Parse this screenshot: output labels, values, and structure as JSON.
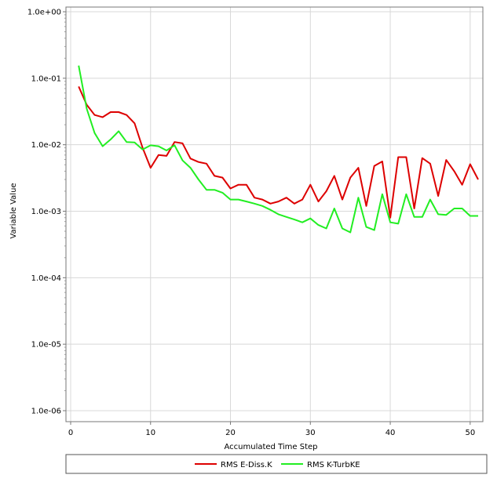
{
  "chart_data": {
    "type": "line",
    "title": "",
    "xlabel": "Accumulated Time Step",
    "ylabel": "Variable Value",
    "xlim": [
      0,
      51
    ],
    "ylim": [
      1e-06,
      1
    ],
    "y_scale": "log",
    "x_ticks": [
      0,
      10,
      20,
      30,
      40,
      50
    ],
    "x_tick_labels": [
      "0",
      "10",
      "20",
      "30",
      "40",
      "50"
    ],
    "y_ticks": [
      1e-06,
      1e-05,
      0.0001,
      0.001,
      0.01,
      0.1,
      1
    ],
    "y_tick_labels": [
      "1.0e-06",
      "1.0e-05",
      "1.0e-04",
      "1.0e-03",
      "1.0e-02",
      "1.0e-01",
      "1.0e+00"
    ],
    "grid": true,
    "legend_position": "bottom",
    "series": [
      {
        "name": "RMS E-Diss.K",
        "color": "#dd0000",
        "x": [
          1,
          2,
          3,
          4,
          5,
          6,
          7,
          8,
          9,
          10,
          11,
          12,
          13,
          14,
          15,
          16,
          17,
          18,
          19,
          20,
          21,
          22,
          23,
          24,
          25,
          26,
          27,
          28,
          29,
          30,
          31,
          32,
          33,
          34,
          35,
          36,
          37,
          38,
          39,
          40,
          41,
          42,
          43,
          44,
          45,
          46,
          47,
          48,
          49,
          50,
          51
        ],
        "values": [
          0.075,
          0.04,
          0.028,
          0.026,
          0.031,
          0.031,
          0.028,
          0.021,
          0.009,
          0.0045,
          0.007,
          0.0068,
          0.011,
          0.0105,
          0.0062,
          0.0055,
          0.0052,
          0.0034,
          0.0032,
          0.0022,
          0.0025,
          0.0025,
          0.0016,
          0.0015,
          0.0013,
          0.0014,
          0.0016,
          0.0013,
          0.0015,
          0.0025,
          0.0014,
          0.002,
          0.0034,
          0.0015,
          0.0032,
          0.0045,
          0.0012,
          0.0048,
          0.0056,
          0.0008,
          0.0065,
          0.0065,
          0.0011,
          0.0063,
          0.0052,
          0.0017,
          0.0059,
          0.004,
          0.0025,
          0.0051,
          0.003
        ]
      },
      {
        "name": "RMS K-TurbKE",
        "color": "#22ee22",
        "x": [
          1,
          2,
          3,
          4,
          5,
          6,
          7,
          8,
          9,
          10,
          11,
          12,
          13,
          14,
          15,
          16,
          17,
          18,
          19,
          20,
          21,
          22,
          23,
          24,
          25,
          26,
          27,
          28,
          29,
          30,
          31,
          32,
          33,
          34,
          35,
          36,
          37,
          38,
          39,
          40,
          41,
          42,
          43,
          44,
          45,
          46,
          47,
          48,
          49,
          50,
          51
        ],
        "values": [
          0.155,
          0.035,
          0.015,
          0.0095,
          0.012,
          0.016,
          0.011,
          0.0108,
          0.0085,
          0.0098,
          0.0095,
          0.0082,
          0.0098,
          0.0058,
          0.0045,
          0.003,
          0.0021,
          0.0021,
          0.0019,
          0.0015,
          0.0015,
          0.0014,
          0.0013,
          0.0012,
          0.00105,
          0.0009,
          0.00082,
          0.00075,
          0.00068,
          0.00078,
          0.00062,
          0.00055,
          0.0011,
          0.00055,
          0.00048,
          0.0016,
          0.00058,
          0.00052,
          0.0018,
          0.00068,
          0.00065,
          0.0018,
          0.00082,
          0.00082,
          0.0015,
          0.0009,
          0.00088,
          0.0011,
          0.0011,
          0.00085,
          0.00085
        ]
      }
    ]
  }
}
